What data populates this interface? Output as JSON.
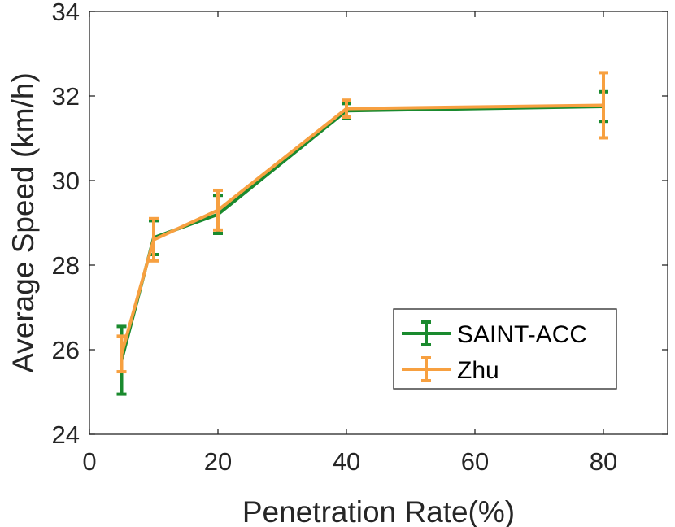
{
  "chart_data": {
    "type": "line",
    "title": "",
    "xlabel": "Penetration Rate(%)",
    "ylabel": "Average Speed (km/h)",
    "xlim": [
      0,
      90
    ],
    "ylim": [
      24,
      34
    ],
    "xticks": [
      0,
      20,
      40,
      60,
      80
    ],
    "yticks": [
      24,
      26,
      28,
      30,
      32,
      34
    ],
    "grid": false,
    "legend_position": "bottom-right",
    "series": [
      {
        "name": "SAINT-ACC",
        "color": "#1a8a2e",
        "x": [
          5,
          10,
          20,
          40,
          80
        ],
        "y": [
          25.75,
          28.65,
          29.2,
          31.65,
          31.75
        ],
        "err": [
          0.8,
          0.4,
          0.45,
          0.17,
          0.35
        ]
      },
      {
        "name": "Zhu",
        "color": "#f7a040",
        "x": [
          5,
          10,
          20,
          40,
          80
        ],
        "y": [
          25.9,
          28.6,
          29.3,
          31.7,
          31.78
        ],
        "err": [
          0.42,
          0.5,
          0.47,
          0.2,
          0.77
        ]
      }
    ]
  }
}
